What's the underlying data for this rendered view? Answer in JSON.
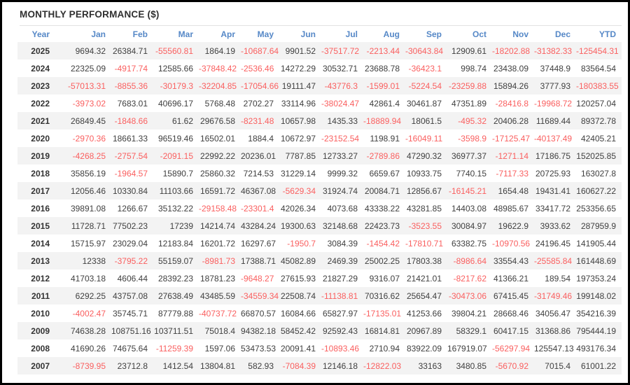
{
  "title": "MONTHLY PERFORMANCE ($)",
  "colors": {
    "header_text": "#5688c7",
    "positive_value": "#404040",
    "negative_value": "#fa5f5f",
    "row_stripe": "#f3f3f3",
    "title_text": "#2f2f2f",
    "frame_border": "#000000"
  },
  "table": {
    "columns": [
      "Year",
      "Jan",
      "Feb",
      "Mar",
      "Apr",
      "May",
      "Jun",
      "Jul",
      "Aug",
      "Sep",
      "Oct",
      "Nov",
      "Dec",
      "YTD"
    ],
    "rows": [
      {
        "year": "2025",
        "values": [
          "9694.32",
          "26384.71",
          "-55560.81",
          "1864.19",
          "-10687.64",
          "9901.52",
          "-37517.72",
          "-2213.44",
          "-30643.84",
          "12909.61",
          "-18202.88",
          "-31382.33",
          "-125454.31"
        ]
      },
      {
        "year": "2024",
        "values": [
          "22325.09",
          "-4917.74",
          "12585.66",
          "-37848.42",
          "-2536.46",
          "14272.29",
          "30532.71",
          "23688.78",
          "-36423.1",
          "998.74",
          "23438.09",
          "37448.9",
          "83564.54"
        ]
      },
      {
        "year": "2023",
        "values": [
          "-57013.31",
          "-8855.36",
          "-30179.3",
          "-32204.85",
          "-17054.66",
          "19111.47",
          "-43776.3",
          "-1599.01",
          "-5224.54",
          "-23259.88",
          "15894.26",
          "3777.93",
          "-180383.55"
        ]
      },
      {
        "year": "2022",
        "values": [
          "-3973.02",
          "7683.01",
          "40696.17",
          "5768.48",
          "2702.27",
          "33114.96",
          "-38024.47",
          "42861.4",
          "30461.87",
          "47351.89",
          "-28416.8",
          "-19968.72",
          "120257.04"
        ]
      },
      {
        "year": "2021",
        "values": [
          "26849.45",
          "-1848.66",
          "61.62",
          "29676.58",
          "-8231.48",
          "10657.98",
          "1435.33",
          "-18889.94",
          "18061.5",
          "-495.32",
          "20406.28",
          "11689.44",
          "89372.78"
        ]
      },
      {
        "year": "2020",
        "values": [
          "-2970.36",
          "18661.33",
          "96519.46",
          "16502.01",
          "1884.4",
          "10672.97",
          "-23152.54",
          "1198.91",
          "-16049.11",
          "-3598.9",
          "-17125.47",
          "-40137.49",
          "42405.21"
        ]
      },
      {
        "year": "2019",
        "values": [
          "-4268.25",
          "-2757.54",
          "-2091.15",
          "22992.22",
          "20236.01",
          "7787.85",
          "12733.27",
          "-2789.86",
          "47290.32",
          "36977.37",
          "-1271.14",
          "17186.75",
          "152025.85"
        ]
      },
      {
        "year": "2018",
        "values": [
          "35856.19",
          "-1964.57",
          "15890.7",
          "25860.32",
          "7214.53",
          "31229.14",
          "9999.32",
          "6659.67",
          "10933.75",
          "7740.15",
          "-7117.33",
          "20725.93",
          "163027.8"
        ]
      },
      {
        "year": "2017",
        "values": [
          "12056.46",
          "10330.84",
          "11103.66",
          "16591.72",
          "46367.08",
          "-5629.34",
          "31924.74",
          "20084.71",
          "12856.67",
          "-16145.21",
          "1654.48",
          "19431.41",
          "160627.22"
        ]
      },
      {
        "year": "2016",
        "values": [
          "39891.08",
          "1266.67",
          "35132.22",
          "-29158.48",
          "-23301.4",
          "42026.34",
          "4073.68",
          "43338.22",
          "43281.85",
          "14403.08",
          "48985.67",
          "33417.72",
          "253356.65"
        ]
      },
      {
        "year": "2015",
        "values": [
          "11728.71",
          "77502.23",
          "17239",
          "14214.74",
          "43284.24",
          "19300.63",
          "32148.68",
          "22423.73",
          "-3523.55",
          "30084.97",
          "19622.9",
          "3933.62",
          "287959.9"
        ]
      },
      {
        "year": "2014",
        "values": [
          "15715.97",
          "23029.04",
          "12183.84",
          "16201.72",
          "16297.67",
          "-1950.7",
          "3084.39",
          "-1454.42",
          "-17810.71",
          "63382.75",
          "-10970.56",
          "24196.45",
          "141905.44"
        ]
      },
      {
        "year": "2013",
        "values": [
          "12338",
          "-3795.22",
          "55159.07",
          "-8981.73",
          "17388.71",
          "45082.89",
          "2469.39",
          "25002.25",
          "17803.38",
          "-8986.64",
          "33554.43",
          "-25585.84",
          "161448.69"
        ]
      },
      {
        "year": "2012",
        "values": [
          "41703.18",
          "4606.44",
          "28392.23",
          "18781.23",
          "-9648.27",
          "27615.93",
          "21827.29",
          "9316.07",
          "21421.01",
          "-8217.62",
          "41366.21",
          "189.54",
          "197353.24"
        ]
      },
      {
        "year": "2011",
        "values": [
          "6292.25",
          "43757.08",
          "27638.49",
          "43485.59",
          "-34559.34",
          "22508.74",
          "-11138.81",
          "70316.62",
          "25654.47",
          "-30473.06",
          "67415.45",
          "-31749.46",
          "199148.02"
        ]
      },
      {
        "year": "2010",
        "values": [
          "-4002.47",
          "35745.71",
          "87779.88",
          "-40737.72",
          "66870.57",
          "16084.66",
          "65827.97",
          "-17135.01",
          "41253.66",
          "39804.21",
          "28668.46",
          "34056.47",
          "354216.39"
        ]
      },
      {
        "year": "2009",
        "values": [
          "74638.28",
          "108751.16",
          "103711.51",
          "75018.4",
          "94382.18",
          "58452.42",
          "92592.43",
          "16814.81",
          "20967.89",
          "58329.1",
          "60417.15",
          "31368.86",
          "795444.19"
        ]
      },
      {
        "year": "2008",
        "values": [
          "41690.26",
          "74675.64",
          "-11259.39",
          "1597.06",
          "53473.53",
          "20091.41",
          "-10893.46",
          "2710.94",
          "83922.09",
          "167919.07",
          "-56297.94",
          "125547.13",
          "493176.34"
        ]
      },
      {
        "year": "2007",
        "values": [
          "-8739.95",
          "23712.8",
          "1412.54",
          "13804.81",
          "582.93",
          "-7084.39",
          "12146.18",
          "-12822.03",
          "33163",
          "3480.85",
          "-5670.92",
          "7015.4",
          "61001.22"
        ]
      }
    ]
  }
}
